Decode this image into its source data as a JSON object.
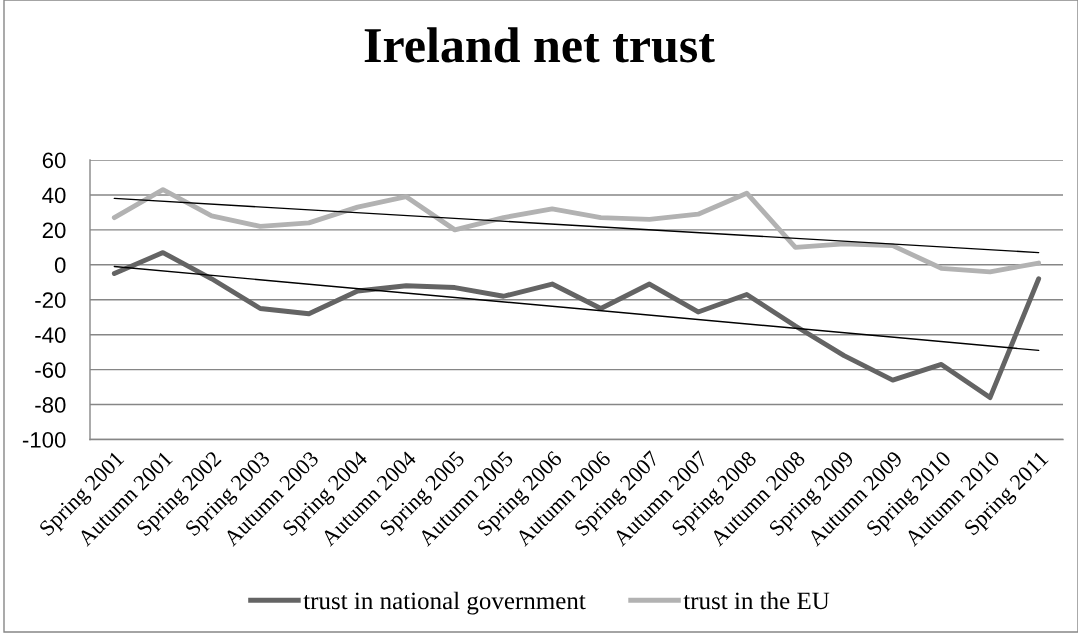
{
  "chart_data": {
    "type": "line",
    "title": "Ireland net trust",
    "categories": [
      "Spring 2001",
      "Autumn 2001",
      "Spring 2002",
      "Spring 2003",
      "Autumn 2003",
      "Spring 2004",
      "Autumn 2004",
      "Spring 2005",
      "Autumn 2005",
      "Spring 2006",
      "Autumn 2006",
      "Spring 2007",
      "Autumn 2007",
      "Spring 2008",
      "Autumn 2008",
      "Spring 2009",
      "Autumn 2009",
      "Spring 2010",
      "Autumn 2010",
      "Spring 2011"
    ],
    "series": [
      {
        "name": "trust in national government",
        "color": "#646464",
        "values": [
          -5,
          7,
          -8,
          -25,
          -28,
          -15,
          -12,
          -13,
          -18,
          -11,
          -25,
          -11,
          -27,
          -17,
          -35,
          -52,
          -66,
          -57,
          -76,
          -8
        ]
      },
      {
        "name": "trust in the EU",
        "color": "#b2b2b2",
        "values": [
          27,
          43,
          28,
          22,
          24,
          33,
          39,
          20,
          27,
          32,
          27,
          26,
          29,
          41,
          10,
          12,
          11,
          -2,
          -4,
          1
        ]
      },
      {
        "type": "line",
        "color": "#000000",
        "x": [
          "Spring 2001",
          "Spring 2011"
        ],
        "values": [
          38,
          7
        ]
      },
      {
        "type": "line",
        "color": "#000000",
        "x": [
          "Spring 2001",
          "Spring 2011"
        ],
        "values": [
          -1,
          -49
        ]
      }
    ],
    "ylim": [
      -100,
      60
    ],
    "yticks": [
      -100,
      -80,
      -60,
      -40,
      -20,
      0,
      20,
      40,
      60
    ],
    "grid": "y",
    "legend": "bottom",
    "line_style": "solid"
  }
}
